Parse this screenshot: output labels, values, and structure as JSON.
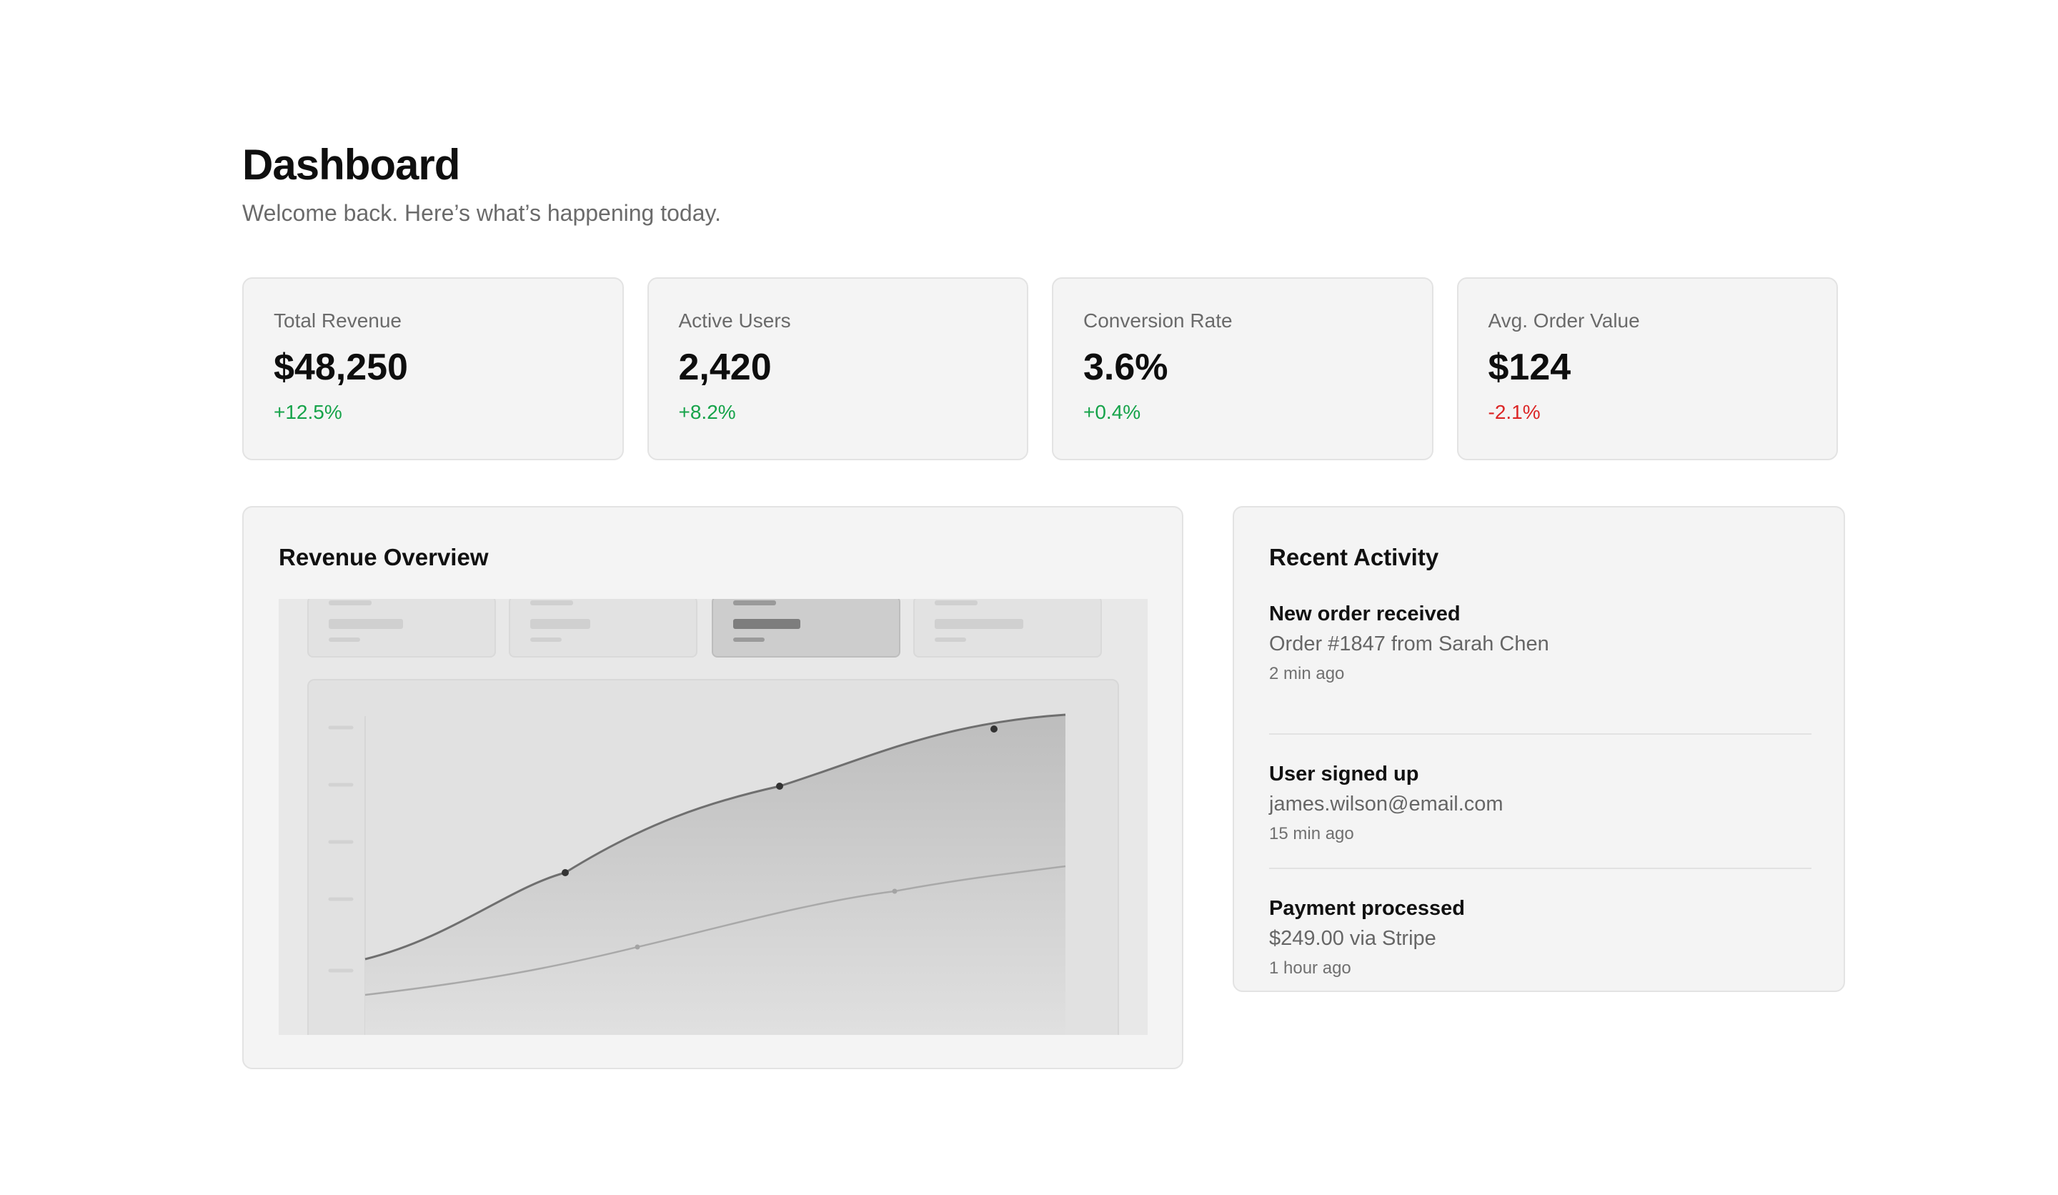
{
  "header": {
    "title": "Dashboard",
    "subtitle": "Welcome back. Here’s what’s happening today."
  },
  "stats": [
    {
      "label": "Total Revenue",
      "value": "$48,250",
      "delta": "+12.5%",
      "trend": "up"
    },
    {
      "label": "Active Users",
      "value": "2,420",
      "delta": "+8.2%",
      "trend": "up"
    },
    {
      "label": "Conversion Rate",
      "value": "3.6%",
      "delta": "+0.4%",
      "trend": "up"
    },
    {
      "label": "Avg. Order Value",
      "value": "$124",
      "delta": "-2.1%",
      "trend": "down"
    }
  ],
  "revenue_overview": {
    "title": "Revenue Overview",
    "active_tile": 2
  },
  "recent_activity": {
    "title": "Recent Activity",
    "items": [
      {
        "title": "New order received",
        "detail": "Order #1847 from Sarah Chen",
        "time": "2 min ago"
      },
      {
        "title": "User signed up",
        "detail": "james.wilson@email.com",
        "time": "15 min ago"
      },
      {
        "title": "Payment processed",
        "detail": "$249.00 via Stripe",
        "time": "1 hour ago"
      }
    ]
  },
  "colors": {
    "positive": "#16a34a",
    "negative": "#dc2626",
    "card_bg": "#f4f4f4",
    "border": "#e3e3e3"
  }
}
